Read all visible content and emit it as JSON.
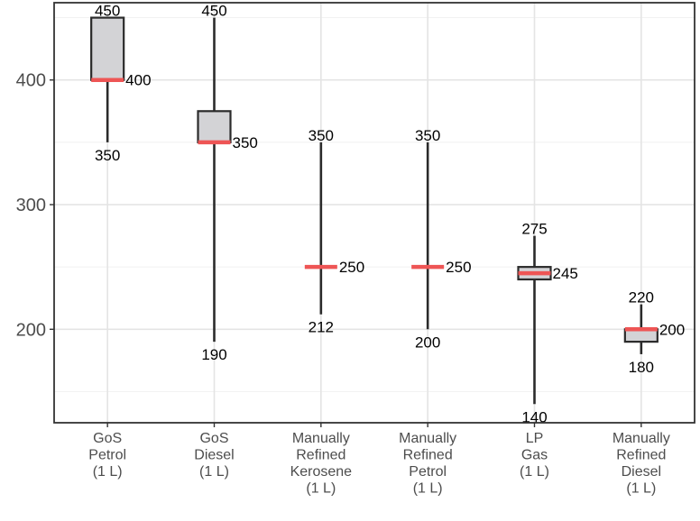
{
  "chart_data": {
    "type": "boxplot",
    "title": "",
    "xlabel": "",
    "ylabel": "",
    "ylim": [
      125,
      462
    ],
    "grid": true,
    "legend": "none",
    "y_ticks": [
      {
        "value": 200,
        "label": "200"
      },
      {
        "value": 300,
        "label": "300"
      },
      {
        "value": 400,
        "label": "400"
      }
    ],
    "categories": [
      {
        "lines": [
          "GoS",
          "Petrol",
          "(1 L)"
        ],
        "min": 350,
        "q1": 400,
        "median": 400,
        "q3": 450,
        "max": 450,
        "labels": {
          "max": "450",
          "median": "400",
          "min": "350"
        }
      },
      {
        "lines": [
          "GoS",
          "Diesel",
          "(1 L)"
        ],
        "min": 190,
        "q1": 350,
        "median": 350,
        "q3": 375,
        "max": 450,
        "labels": {
          "max": "450",
          "median": "350",
          "min": "190"
        }
      },
      {
        "lines": [
          "Manually",
          "Refined",
          "Kerosene",
          "(1 L)"
        ],
        "min": 212,
        "q1": 250,
        "median": 250,
        "q3": 250,
        "max": 350,
        "labels": {
          "max": "350",
          "median": "250",
          "min": "212"
        }
      },
      {
        "lines": [
          "Manually",
          "Refined",
          "Petrol",
          "(1 L)"
        ],
        "min": 200,
        "q1": 250,
        "median": 250,
        "q3": 250,
        "max": 350,
        "labels": {
          "max": "350",
          "median": "250",
          "min": "200"
        }
      },
      {
        "lines": [
          "LP",
          "Gas",
          "(1 L)"
        ],
        "min": 140,
        "q1": 240,
        "median": 245,
        "q3": 250,
        "max": 275,
        "labels": {
          "max": "275",
          "median": "245",
          "min": "140"
        }
      },
      {
        "lines": [
          "Manually",
          "Refined",
          "Diesel",
          "(1 L)"
        ],
        "min": 180,
        "q1": 190,
        "median": 200,
        "q3": 200,
        "max": 220,
        "labels": {
          "max": "220",
          "median": "200",
          "min": "180"
        }
      }
    ],
    "colors": {
      "box_fill": "#d3d3d6",
      "box_stroke": "#2b2b2b",
      "median": "#ee5555",
      "grid_major": "#e4e4e4",
      "grid_minor": "#f1f1f1",
      "panel_border": "#333333"
    }
  }
}
